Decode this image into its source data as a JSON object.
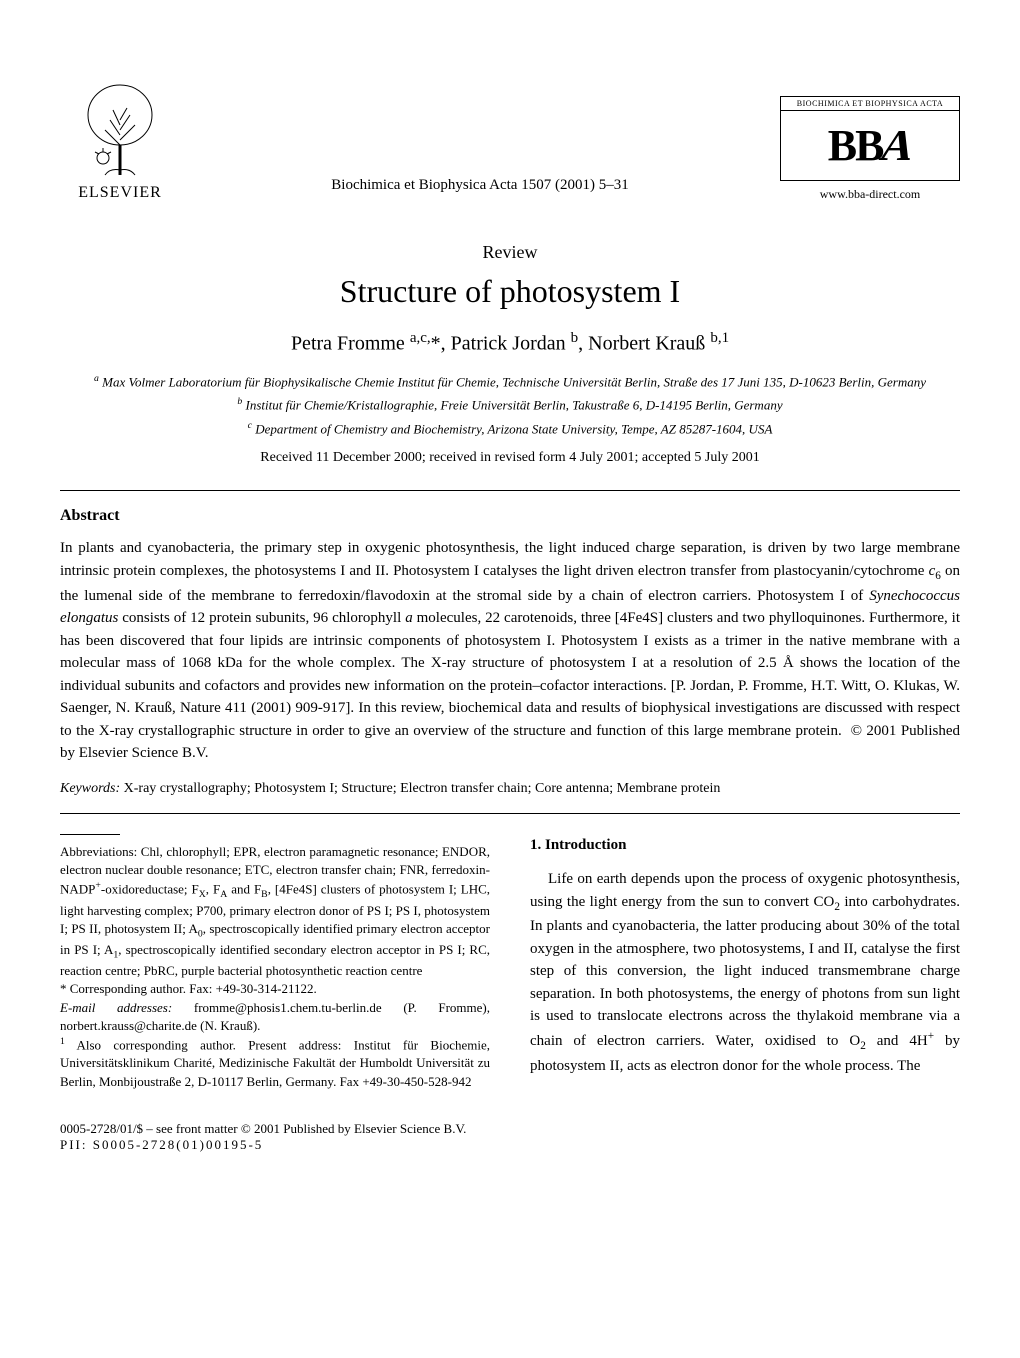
{
  "publisher": {
    "name": "ELSEVIER"
  },
  "journal": {
    "citation": "Biochimica et Biophysica Acta 1507 (2001) 5–31",
    "logo_header": "BIOCHIMICA ET BIOPHYSICA ACTA",
    "logo_text": "BBA",
    "url": "www.bba-direct.com"
  },
  "article": {
    "type": "Review",
    "title": "Structure of photosystem I",
    "authors_html": "Petra Fromme <sup>a,c,</sup>*, Patrick Jordan <sup>b</sup>, Norbert Krauß <sup>b,1</sup>",
    "affiliations": [
      "<sup>a</sup> Max Volmer Laboratorium für Biophysikalische Chemie Institut für Chemie, Technische Universität Berlin, Straße des 17 Juni 135, D-10623 Berlin, Germany",
      "<sup>b</sup> Institut für Chemie/Kristallographie, Freie Universität Berlin, Takustraße 6, D-14195 Berlin, Germany",
      "<sup>c</sup> Department of Chemistry and Biochemistry, Arizona State University, Tempe, AZ 85287-1604, USA"
    ],
    "dates": "Received 11 December 2000; received in revised form 4 July 2001; accepted 5 July 2001"
  },
  "abstract": {
    "heading": "Abstract",
    "text_html": "In plants and cyanobacteria, the primary step in oxygenic photosynthesis, the light induced charge separation, is driven by two large membrane intrinsic protein complexes, the photosystems I and II. Photosystem I catalyses the light driven electron transfer from plastocyanin/cytochrome <i>c</i><sub>6</sub> on the lumenal side of the membrane to ferredoxin/flavodoxin at the stromal side by a chain of electron carriers. Photosystem I of <i>Synechococcus elongatus</i> consists of 12 protein subunits, 96 chlorophyll <i>a</i> molecules, 22 carotenoids, three [4Fe4S] clusters and two phylloquinones. Furthermore, it has been discovered that four lipids are intrinsic components of photosystem I. Photosystem I exists as a trimer in the native membrane with a molecular mass of 1068 kDa for the whole complex. The X-ray structure of photosystem I at a resolution of 2.5 Å shows the location of the individual subunits and cofactors and provides new information on the protein–cofactor interactions. [P. Jordan, P. Fromme, H.T. Witt, O. Klukas, W. Saenger, N. Krauß, Nature 411 (2001) 909-917]. In this review, biochemical data and results of biophysical investigations are discussed with respect to the X-ray crystallographic structure in order to give an overview of the structure and function of this large membrane protein. &nbsp;© 2001 Published by Elsevier Science B.V."
  },
  "keywords": {
    "label": "Keywords:",
    "text": "X-ray crystallography; Photosystem I; Structure; Electron transfer chain; Core antenna; Membrane protein"
  },
  "footnotes": {
    "abbreviations_html": "Abbreviations: Chl, chlorophyll; EPR, electron paramagnetic resonance; ENDOR, electron nuclear double resonance; ETC, electron transfer chain; FNR, ferredoxin-NADP<sup>+</sup>-oxidoreductase; F<sub>X</sub>, F<sub>A</sub> and F<sub>B</sub>, [4Fe4S] clusters of photosystem I; LHC, light harvesting complex; P700, primary electron donor of PS I; PS I, photosystem I; PS II, photosystem II; A<sub>0</sub>, spectroscopically identified primary electron acceptor in PS I; A<sub>1</sub>, spectroscopically identified secondary electron acceptor in PS I; RC, reaction centre; PbRC, purple bacterial photosynthetic reaction centre",
    "corresponding": "* Corresponding author. Fax: +49-30-314-21122.",
    "emails_html": "<i>E-mail addresses:</i> fromme@phosis1.chem.tu-berlin.de (P. Fromme), norbert.krauss@charite.de (N. Krauß).",
    "also_corresponding": "<sup>1</sup> Also corresponding author. Present address: Institut für Biochemie, Universitätsklinikum Charité, Medizinische Fakultät der Humboldt Universität zu Berlin, Monbijoustraße 2, D-10117 Berlin, Germany. Fax +49-30-450-528-942"
  },
  "introduction": {
    "heading": "1. Introduction",
    "text_html": "Life on earth depends upon the process of oxygenic photosynthesis, using the light energy from the sun to convert CO<sub>2</sub> into carbohydrates. In plants and cyanobacteria, the latter producing about 30% of the total oxygen in the atmosphere, two photosystems, I and II, catalyse the first step of this conversion, the light induced transmembrane charge separation. In both photosystems, the energy of photons from sun light is used to translocate electrons across the thylakoid membrane via a chain of electron carriers. Water, oxidised to O<sub>2</sub> and 4H<sup>+</sup> by photosystem II, acts as electron donor for the whole process. The"
  },
  "footer": {
    "copyright": "0005-2728/01/$ – see front matter © 2001 Published by Elsevier Science B.V.",
    "pii": "PII: S0005-2728(01)00195-5"
  }
}
